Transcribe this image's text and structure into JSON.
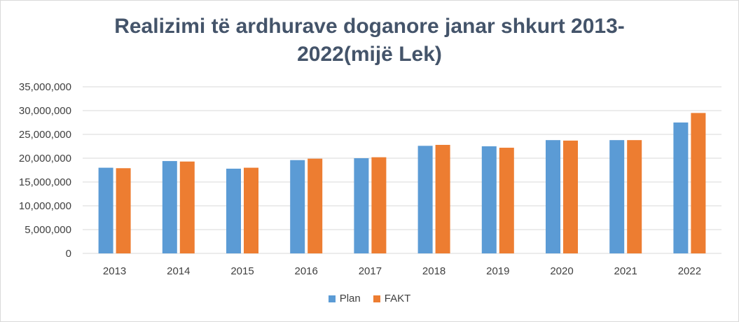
{
  "chart_data": {
    "type": "bar",
    "title_lines": [
      "Realizimi të ardhurave doganore janar shkurt 2013-",
      "2022(mijë Lek)"
    ],
    "categories": [
      "2013",
      "2014",
      "2015",
      "2016",
      "2017",
      "2018",
      "2019",
      "2020",
      "2021",
      "2022"
    ],
    "series": [
      {
        "name": "Plan",
        "color": "#5b9bd5",
        "values": [
          18000000,
          19400000,
          17800000,
          19600000,
          20000000,
          22600000,
          22500000,
          23800000,
          23800000,
          27500000
        ]
      },
      {
        "name": "FAKT",
        "color": "#ed7d31",
        "values": [
          17900000,
          19300000,
          18000000,
          19900000,
          20200000,
          22800000,
          22200000,
          23700000,
          23800000,
          29500000
        ]
      }
    ],
    "yticks": [
      "0",
      "5,000,000",
      "10,000,000",
      "15,000,000",
      "20,000,000",
      "25,000,000",
      "30,000,000",
      "35,000,000"
    ],
    "ylim": [
      0,
      35000000
    ],
    "grid": true,
    "legend_position": "bottom"
  }
}
